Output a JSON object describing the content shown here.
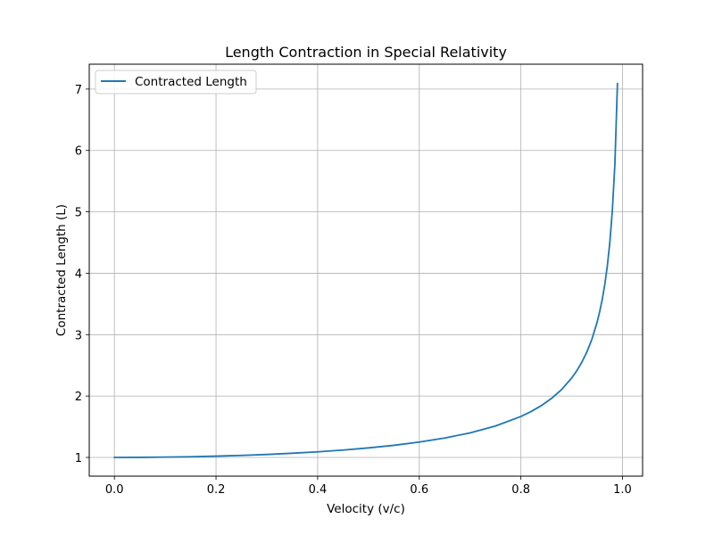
{
  "chart_data": {
    "type": "line",
    "title": "Length Contraction in Special Relativity",
    "xlabel": "Velocity (v/c)",
    "ylabel": "Contracted Length (L)",
    "xlim": [
      -0.0495,
      1.0395
    ],
    "ylim": [
      0.695,
      7.405
    ],
    "xticks": [
      0.0,
      0.2,
      0.4,
      0.6,
      0.8,
      1.0
    ],
    "xtick_labels": [
      "0.0",
      "0.2",
      "0.4",
      "0.6",
      "0.8",
      "1.0"
    ],
    "yticks": [
      1,
      2,
      3,
      4,
      5,
      6,
      7
    ],
    "ytick_labels": [
      "1",
      "2",
      "3",
      "4",
      "5",
      "6",
      "7"
    ],
    "grid": true,
    "legend_position": "top-left",
    "series": [
      {
        "name": "Contracted Length",
        "color": "#1f77b4",
        "x": [
          0.0,
          0.05,
          0.1,
          0.15,
          0.2,
          0.25,
          0.3,
          0.35,
          0.4,
          0.45,
          0.5,
          0.55,
          0.6,
          0.65,
          0.7,
          0.75,
          0.8,
          0.82,
          0.84,
          0.86,
          0.88,
          0.9,
          0.91,
          0.92,
          0.93,
          0.94,
          0.95,
          0.955,
          0.96,
          0.965,
          0.97,
          0.975,
          0.98,
          0.985,
          0.99
        ],
        "y": [
          1.0,
          1.001,
          1.005,
          1.011,
          1.021,
          1.033,
          1.048,
          1.068,
          1.091,
          1.12,
          1.155,
          1.197,
          1.25,
          1.316,
          1.4,
          1.512,
          1.667,
          1.747,
          1.843,
          1.96,
          2.105,
          2.294,
          2.412,
          2.552,
          2.721,
          2.931,
          3.203,
          3.372,
          3.571,
          3.81,
          4.113,
          4.5,
          5.025,
          5.783,
          7.089
        ]
      }
    ]
  }
}
